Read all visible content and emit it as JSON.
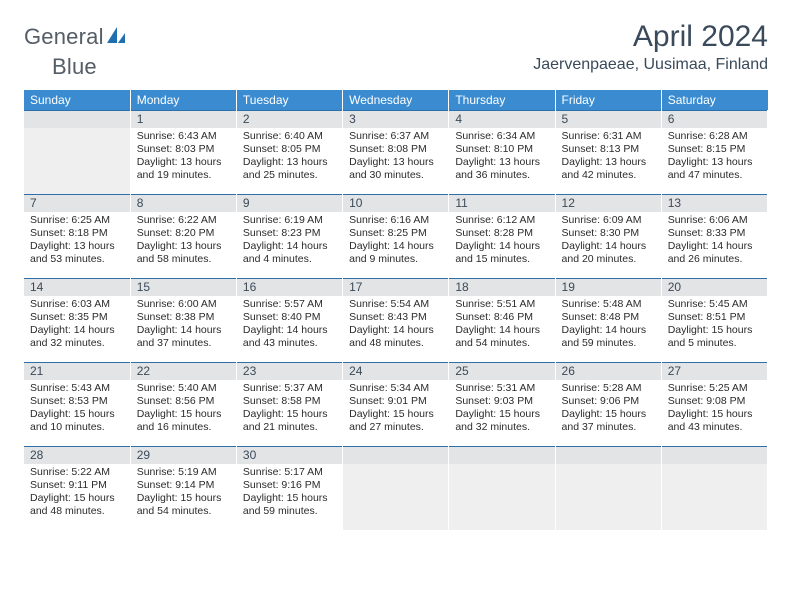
{
  "brand": {
    "word1": "General",
    "word2": "Blue"
  },
  "title": {
    "month": "April 2024",
    "location": "Jaervenpaeae, Uusimaa, Finland"
  },
  "colors": {
    "header_bg": "#3a8bd0",
    "header_fg": "#ffffff",
    "daynum_bg": "#e3e4e5",
    "rule": "#2f6fa9",
    "text": "#2b2b2b",
    "title_color": "#3a4a5a",
    "logo_color": "#1f6fb0"
  },
  "daynames": [
    "Sunday",
    "Monday",
    "Tuesday",
    "Wednesday",
    "Thursday",
    "Friday",
    "Saturday"
  ],
  "weeks": [
    [
      {
        "n": "",
        "sunrise": "",
        "sunset": "",
        "daylight": ""
      },
      {
        "n": "1",
        "sunrise": "Sunrise: 6:43 AM",
        "sunset": "Sunset: 8:03 PM",
        "daylight": "Daylight: 13 hours and 19 minutes."
      },
      {
        "n": "2",
        "sunrise": "Sunrise: 6:40 AM",
        "sunset": "Sunset: 8:05 PM",
        "daylight": "Daylight: 13 hours and 25 minutes."
      },
      {
        "n": "3",
        "sunrise": "Sunrise: 6:37 AM",
        "sunset": "Sunset: 8:08 PM",
        "daylight": "Daylight: 13 hours and 30 minutes."
      },
      {
        "n": "4",
        "sunrise": "Sunrise: 6:34 AM",
        "sunset": "Sunset: 8:10 PM",
        "daylight": "Daylight: 13 hours and 36 minutes."
      },
      {
        "n": "5",
        "sunrise": "Sunrise: 6:31 AM",
        "sunset": "Sunset: 8:13 PM",
        "daylight": "Daylight: 13 hours and 42 minutes."
      },
      {
        "n": "6",
        "sunrise": "Sunrise: 6:28 AM",
        "sunset": "Sunset: 8:15 PM",
        "daylight": "Daylight: 13 hours and 47 minutes."
      }
    ],
    [
      {
        "n": "7",
        "sunrise": "Sunrise: 6:25 AM",
        "sunset": "Sunset: 8:18 PM",
        "daylight": "Daylight: 13 hours and 53 minutes."
      },
      {
        "n": "8",
        "sunrise": "Sunrise: 6:22 AM",
        "sunset": "Sunset: 8:20 PM",
        "daylight": "Daylight: 13 hours and 58 minutes."
      },
      {
        "n": "9",
        "sunrise": "Sunrise: 6:19 AM",
        "sunset": "Sunset: 8:23 PM",
        "daylight": "Daylight: 14 hours and 4 minutes."
      },
      {
        "n": "10",
        "sunrise": "Sunrise: 6:16 AM",
        "sunset": "Sunset: 8:25 PM",
        "daylight": "Daylight: 14 hours and 9 minutes."
      },
      {
        "n": "11",
        "sunrise": "Sunrise: 6:12 AM",
        "sunset": "Sunset: 8:28 PM",
        "daylight": "Daylight: 14 hours and 15 minutes."
      },
      {
        "n": "12",
        "sunrise": "Sunrise: 6:09 AM",
        "sunset": "Sunset: 8:30 PM",
        "daylight": "Daylight: 14 hours and 20 minutes."
      },
      {
        "n": "13",
        "sunrise": "Sunrise: 6:06 AM",
        "sunset": "Sunset: 8:33 PM",
        "daylight": "Daylight: 14 hours and 26 minutes."
      }
    ],
    [
      {
        "n": "14",
        "sunrise": "Sunrise: 6:03 AM",
        "sunset": "Sunset: 8:35 PM",
        "daylight": "Daylight: 14 hours and 32 minutes."
      },
      {
        "n": "15",
        "sunrise": "Sunrise: 6:00 AM",
        "sunset": "Sunset: 8:38 PM",
        "daylight": "Daylight: 14 hours and 37 minutes."
      },
      {
        "n": "16",
        "sunrise": "Sunrise: 5:57 AM",
        "sunset": "Sunset: 8:40 PM",
        "daylight": "Daylight: 14 hours and 43 minutes."
      },
      {
        "n": "17",
        "sunrise": "Sunrise: 5:54 AM",
        "sunset": "Sunset: 8:43 PM",
        "daylight": "Daylight: 14 hours and 48 minutes."
      },
      {
        "n": "18",
        "sunrise": "Sunrise: 5:51 AM",
        "sunset": "Sunset: 8:46 PM",
        "daylight": "Daylight: 14 hours and 54 minutes."
      },
      {
        "n": "19",
        "sunrise": "Sunrise: 5:48 AM",
        "sunset": "Sunset: 8:48 PM",
        "daylight": "Daylight: 14 hours and 59 minutes."
      },
      {
        "n": "20",
        "sunrise": "Sunrise: 5:45 AM",
        "sunset": "Sunset: 8:51 PM",
        "daylight": "Daylight: 15 hours and 5 minutes."
      }
    ],
    [
      {
        "n": "21",
        "sunrise": "Sunrise: 5:43 AM",
        "sunset": "Sunset: 8:53 PM",
        "daylight": "Daylight: 15 hours and 10 minutes."
      },
      {
        "n": "22",
        "sunrise": "Sunrise: 5:40 AM",
        "sunset": "Sunset: 8:56 PM",
        "daylight": "Daylight: 15 hours and 16 minutes."
      },
      {
        "n": "23",
        "sunrise": "Sunrise: 5:37 AM",
        "sunset": "Sunset: 8:58 PM",
        "daylight": "Daylight: 15 hours and 21 minutes."
      },
      {
        "n": "24",
        "sunrise": "Sunrise: 5:34 AM",
        "sunset": "Sunset: 9:01 PM",
        "daylight": "Daylight: 15 hours and 27 minutes."
      },
      {
        "n": "25",
        "sunrise": "Sunrise: 5:31 AM",
        "sunset": "Sunset: 9:03 PM",
        "daylight": "Daylight: 15 hours and 32 minutes."
      },
      {
        "n": "26",
        "sunrise": "Sunrise: 5:28 AM",
        "sunset": "Sunset: 9:06 PM",
        "daylight": "Daylight: 15 hours and 37 minutes."
      },
      {
        "n": "27",
        "sunrise": "Sunrise: 5:25 AM",
        "sunset": "Sunset: 9:08 PM",
        "daylight": "Daylight: 15 hours and 43 minutes."
      }
    ],
    [
      {
        "n": "28",
        "sunrise": "Sunrise: 5:22 AM",
        "sunset": "Sunset: 9:11 PM",
        "daylight": "Daylight: 15 hours and 48 minutes."
      },
      {
        "n": "29",
        "sunrise": "Sunrise: 5:19 AM",
        "sunset": "Sunset: 9:14 PM",
        "daylight": "Daylight: 15 hours and 54 minutes."
      },
      {
        "n": "30",
        "sunrise": "Sunrise: 5:17 AM",
        "sunset": "Sunset: 9:16 PM",
        "daylight": "Daylight: 15 hours and 59 minutes."
      },
      {
        "n": "",
        "sunrise": "",
        "sunset": "",
        "daylight": ""
      },
      {
        "n": "",
        "sunrise": "",
        "sunset": "",
        "daylight": ""
      },
      {
        "n": "",
        "sunrise": "",
        "sunset": "",
        "daylight": ""
      },
      {
        "n": "",
        "sunrise": "",
        "sunset": "",
        "daylight": ""
      }
    ]
  ]
}
